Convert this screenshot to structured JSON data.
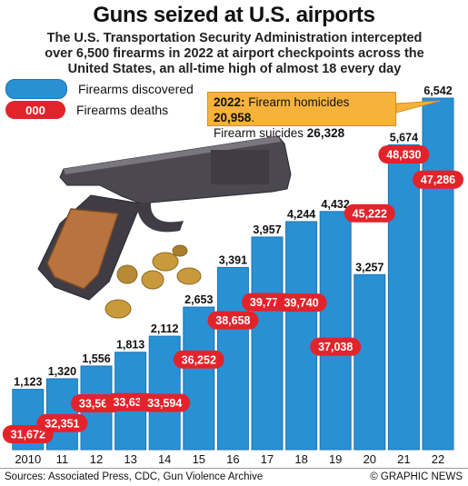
{
  "title": "Guns seized at U.S. airports",
  "subtitle": "The U.S. Transportation Security Administration intercepted over 6,500 firearms in 2022 at airport checkpoints across the United States, an all-time high of almost 18 every day",
  "legend": {
    "discovered": "Firearms discovered",
    "deaths_sample": "000",
    "deaths": "Firearms deaths"
  },
  "callout": {
    "year": "2022:",
    "homicides_label": "Firearm homicides",
    "homicides_value": "20,958",
    "suicides_label": "Firearm suicides",
    "suicides_value": "26,328"
  },
  "watermark": {
    "logo": "GN",
    "text": "GRAPHIC NEWS"
  },
  "footer": {
    "sources": "Sources: Associated Press, CDC, Gun Violence Archive",
    "credit": "© GRAPHIC NEWS"
  },
  "colors": {
    "bar": "#2a90d4",
    "bar_edge": "#1d74b3",
    "deaths_pill": "#e3232b",
    "callout": "#f6b23a"
  },
  "chart_data": {
    "type": "bar",
    "categories": [
      "2010",
      "11",
      "12",
      "13",
      "14",
      "15",
      "16",
      "17",
      "18",
      "19",
      "20",
      "21",
      "22"
    ],
    "series": [
      {
        "name": "Firearms discovered",
        "values": [
          1123,
          1320,
          1556,
          1813,
          2112,
          2653,
          3391,
          3957,
          4244,
          4432,
          3257,
          5674,
          6542
        ],
        "labels": [
          "1,123",
          "1,320",
          "1,556",
          "1,813",
          "2,112",
          "2,653",
          "3,391",
          "3,957",
          "4,244",
          "4,432",
          "3,257",
          "5,674",
          "6,542"
        ]
      },
      {
        "name": "Firearms deaths",
        "values": [
          31672,
          32351,
          33563,
          33636,
          33594,
          36252,
          38658,
          39773,
          39740,
          37038,
          45222,
          48830,
          47286
        ],
        "labels": [
          "31,672",
          "32,351",
          "33,563",
          "33,636",
          "33,594",
          "36,252",
          "38,658",
          "39,773",
          "39,740",
          "37,038",
          "45,222",
          "48,830",
          "47,286"
        ]
      }
    ],
    "ylim": [
      0,
      7000
    ]
  }
}
